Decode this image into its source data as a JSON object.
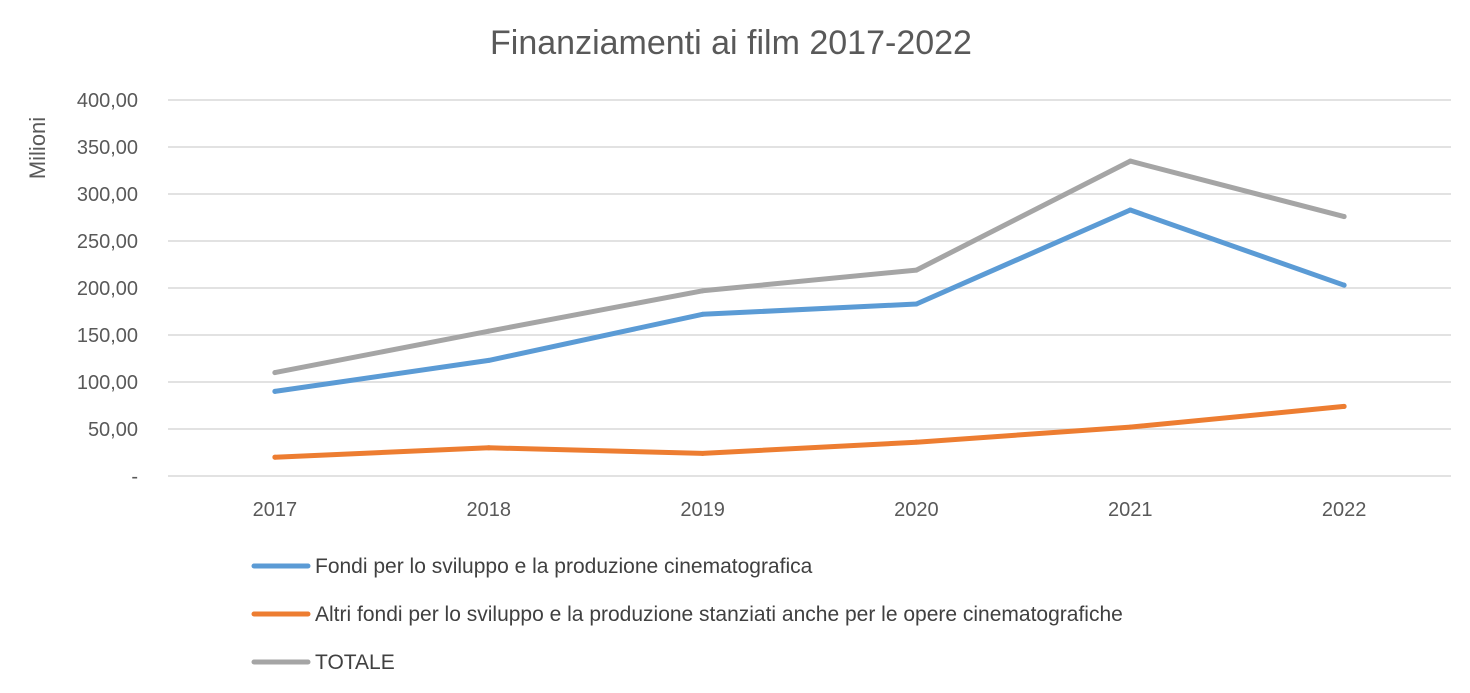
{
  "chart_data": {
    "type": "line",
    "title": "Finanziamenti ai film 2017-2022",
    "ylabel": "Milioni",
    "xlabel": "",
    "categories": [
      "2017",
      "2018",
      "2019",
      "2020",
      "2021",
      "2022"
    ],
    "y_ticks": [
      "-",
      "50,00",
      "100,00",
      "150,00",
      "200,00",
      "250,00",
      "300,00",
      "350,00",
      "400,00"
    ],
    "ylim": [
      0,
      400
    ],
    "grid": true,
    "legend_position": "bottom",
    "series": [
      {
        "name": "Fondi per lo sviluppo e la produzione cinematografica",
        "color": "#5b9bd5",
        "values": [
          90,
          123,
          172,
          183,
          283,
          203
        ]
      },
      {
        "name": "Altri fondi per lo sviluppo e la produzione stanziati anche per le opere cinematografiche",
        "color": "#ed7d31",
        "values": [
          20,
          30,
          24,
          36,
          52,
          74
        ]
      },
      {
        "name": "TOTALE",
        "color": "#a5a5a5",
        "values": [
          110,
          154,
          197,
          219,
          335,
          276
        ]
      }
    ]
  }
}
